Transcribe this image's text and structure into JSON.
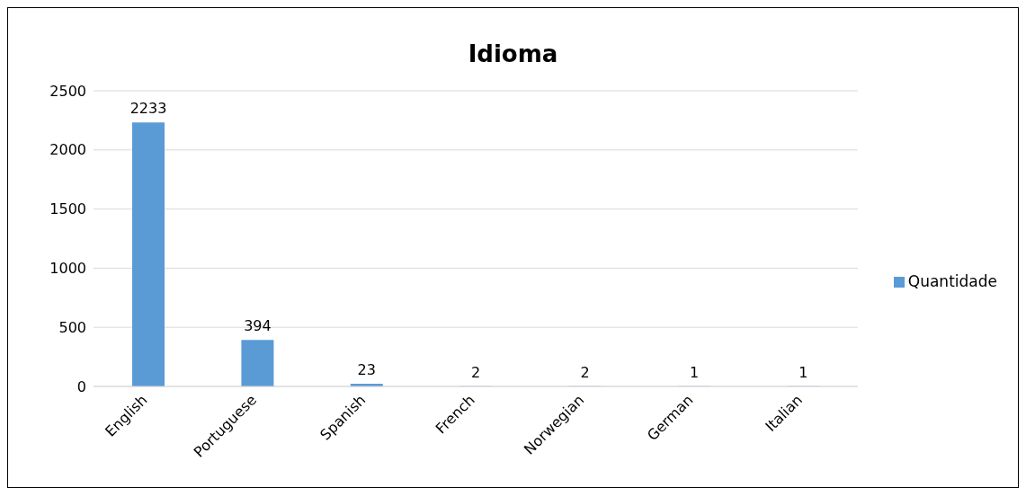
{
  "chart_data": {
    "type": "bar",
    "title": "Idioma",
    "categories": [
      "English",
      "Portuguese",
      "Spanish",
      "French",
      "Norwegian",
      "German",
      "Italian"
    ],
    "series": [
      {
        "name": "Quantidade",
        "color": "#5b9bd5",
        "values": [
          2233,
          394,
          23,
          2,
          2,
          1,
          1
        ]
      }
    ],
    "ylim": [
      0,
      2500
    ],
    "yticks": [
      0,
      500,
      1000,
      1500,
      2000,
      2500
    ],
    "grid": "y",
    "legend": "right",
    "data_labels": true
  }
}
